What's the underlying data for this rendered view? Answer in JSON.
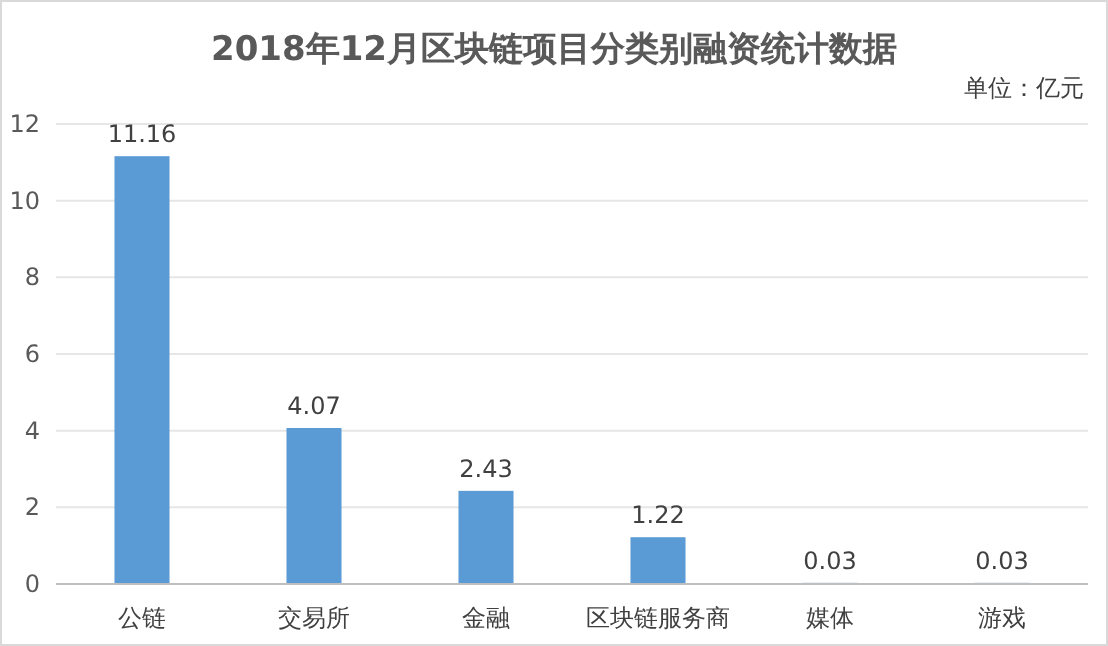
{
  "chart_data": {
    "type": "bar",
    "title": "2018年12月区块链项目分类别融资统计数据",
    "annotations": [
      "单位：亿元"
    ],
    "categories": [
      "公链",
      "交易所",
      "金融",
      "区块链服务商",
      "媒体",
      "游戏"
    ],
    "values": [
      11.16,
      4.07,
      2.43,
      1.22,
      0.03,
      0.03
    ],
    "color": "#5b9bd5",
    "ylim": [
      0,
      12
    ],
    "yticks": [
      0,
      2,
      4,
      6,
      8,
      10,
      12
    ],
    "grid": "y",
    "data_labels": true
  }
}
